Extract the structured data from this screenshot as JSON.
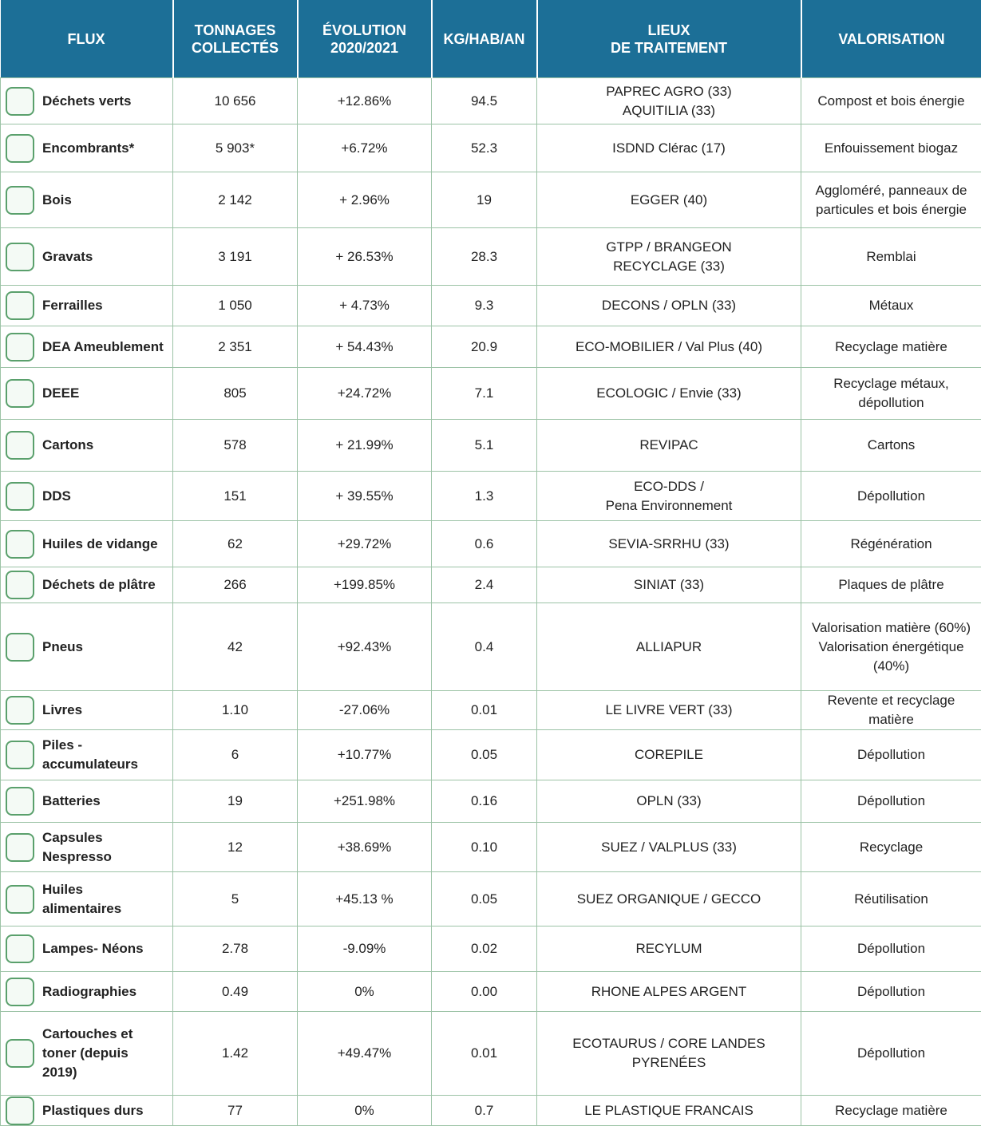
{
  "table": {
    "header": [
      "FLUX",
      "TONNAGES\nCOLLECTÉS",
      "ÉVOLUTION\n2020/2021",
      "KG/HAB/AN",
      "LIEUX\nDE TRAITEMENT",
      "VALORISATION"
    ],
    "rows": [
      [
        "Déchets verts",
        "10 656",
        "+12.86%",
        "94.5",
        "PAPREC AGRO (33)\nAQUITILIA (33)",
        "Compost et bois énergie"
      ],
      [
        "Encombrants*",
        "5 903*",
        "+6.72%",
        "52.3",
        "ISDND Clérac (17)",
        "Enfouissement biogaz"
      ],
      [
        "Bois",
        "2 142",
        "+ 2.96%",
        "19",
        "EGGER (40)",
        "Aggloméré, panneaux de\nparticules et bois énergie"
      ],
      [
        "Gravats",
        "3 191",
        "+ 26.53%",
        "28.3",
        "GTPP / BRANGEON\nRECYCLAGE (33)",
        "Remblai"
      ],
      [
        "Ferrailles",
        "1 050",
        "+ 4.73%",
        "9.3",
        "DECONS / OPLN (33)",
        "Métaux"
      ],
      [
        "DEA Ameublement",
        "2 351",
        "+ 54.43%",
        "20.9",
        "ECO-MOBILIER / Val Plus (40)",
        "Recyclage matière"
      ],
      [
        "DEEE",
        "805",
        "+24.72%",
        "7.1",
        "ECOLOGIC / Envie (33)",
        "Recyclage métaux,\ndépollution"
      ],
      [
        "Cartons",
        "578",
        "+ 21.99%",
        "5.1",
        "REVIPAC",
        "Cartons"
      ],
      [
        "DDS",
        "151",
        "+ 39.55%",
        "1.3",
        "ECO-DDS /\nPena Environnement",
        "Dépollution"
      ],
      [
        "Huiles de vidange",
        "62",
        "+29.72%",
        "0.6",
        "SEVIA-SRRHU (33)",
        "Régénération"
      ],
      [
        "Déchets de plâtre",
        "266",
        "+199.85%",
        "2.4",
        "SINIAT (33)",
        "Plaques de plâtre"
      ],
      [
        "Pneus",
        "42",
        "+92.43%",
        "0.4",
        "ALLIAPUR",
        "Valorisation matière (60%)\nValorisation énergétique\n(40%)"
      ],
      [
        "Livres",
        "1.10",
        "-27.06%",
        "0.01",
        "LE LIVRE VERT (33)",
        "Revente et recyclage matière"
      ],
      [
        "Piles -\naccumulateurs",
        "6",
        "+10.77%",
        "0.05",
        "COREPILE",
        "Dépollution"
      ],
      [
        "Batteries",
        "19",
        "+251.98%",
        "0.16",
        "OPLN (33)",
        "Dépollution"
      ],
      [
        "Capsules\nNespresso",
        "12",
        "+38.69%",
        "0.10",
        "SUEZ / VALPLUS (33)",
        "Recyclage"
      ],
      [
        "Huiles\nalimentaires",
        "5",
        "+45.13 %",
        "0.05",
        "SUEZ ORGANIQUE / GECCO",
        "Réutilisation"
      ],
      [
        "Lampes- Néons",
        "2.78",
        "-9.09%",
        "0.02",
        "RECYLUM",
        "Dépollution"
      ],
      [
        "Radiographies",
        "0.49",
        "0%",
        "0.00",
        "RHONE ALPES ARGENT",
        "Dépollution"
      ],
      [
        "Cartouches et\ntoner (depuis\n2019)",
        "1.42",
        "+49.47%",
        "0.01",
        "ECOTAURUS / CORE LANDES\nPYRENÉES",
        "Dépollution"
      ],
      [
        "Plastiques durs",
        "77",
        "0%",
        "0.7",
        "LE PLASTIQUE FRANCAIS",
        "Recyclage matière"
      ]
    ]
  }
}
